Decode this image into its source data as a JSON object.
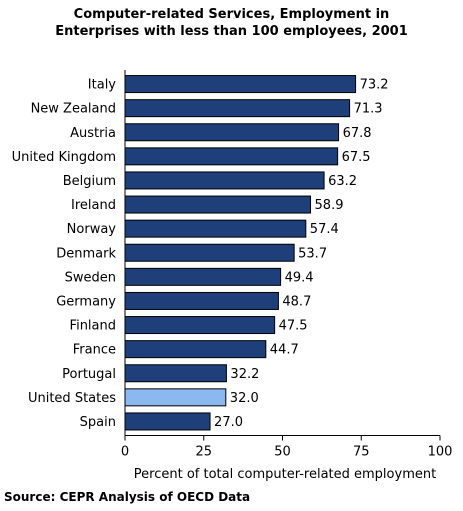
{
  "chart_data": {
    "type": "bar",
    "orientation": "horizontal",
    "title_lines": [
      "Computer-related Services, Employment in",
      "Enterprises with less than 100 employees, 2001"
    ],
    "categories": [
      "Italy",
      "New Zealand",
      "Austria",
      "United Kingdom",
      "Belgium",
      "Ireland",
      "Norway",
      "Denmark",
      "Sweden",
      "Germany",
      "Finland",
      "France",
      "Portugal",
      "United States",
      "Spain"
    ],
    "values": [
      73.2,
      71.3,
      67.8,
      67.5,
      63.2,
      58.9,
      57.4,
      53.7,
      49.4,
      48.7,
      47.5,
      44.7,
      32.2,
      32.0,
      27.0
    ],
    "value_labels": [
      "73.2",
      "71.3",
      "67.8",
      "67.5",
      "63.2",
      "58.9",
      "57.4",
      "53.7",
      "49.4",
      "48.7",
      "47.5",
      "44.7",
      "32.2",
      "32.0",
      "27.0"
    ],
    "highlight_category": "United States",
    "xlabel": "Percent of total computer-related employment",
    "ylabel": "",
    "xlim": [
      0,
      100
    ],
    "xticks": [
      0,
      25,
      50,
      75,
      100
    ],
    "grid": false,
    "colors": {
      "bar": "#1f3f7a",
      "highlight": "#8cb8f0",
      "outline": "#000000"
    }
  },
  "source_note": "Source: CEPR Analysis of OECD Data"
}
